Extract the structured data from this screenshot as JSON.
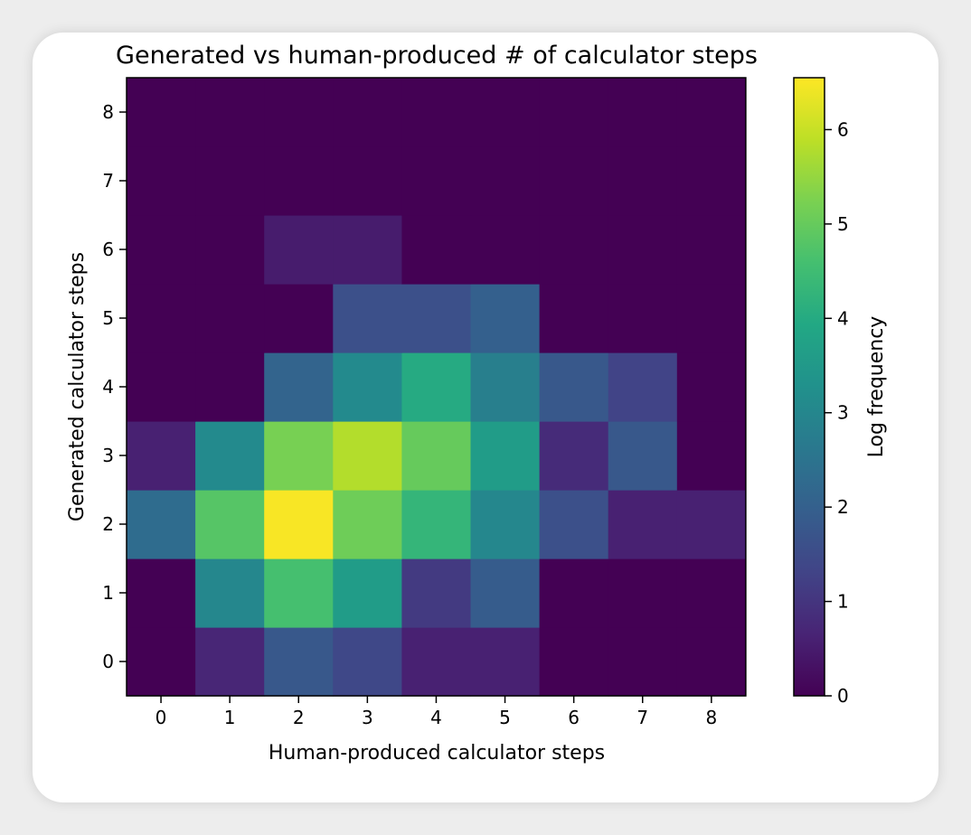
{
  "chart_data": {
    "type": "heatmap",
    "title": "Generated vs human-produced # of calculator steps",
    "xlabel": "Human-produced calculator steps",
    "ylabel": "Generated calculator steps",
    "x_categories": [
      "0",
      "1",
      "2",
      "3",
      "4",
      "5",
      "6",
      "7",
      "8"
    ],
    "y_categories": [
      "0",
      "1",
      "2",
      "3",
      "4",
      "5",
      "6",
      "7",
      "8"
    ],
    "x_tick_labels": [
      "0",
      "1",
      "2",
      "3",
      "4",
      "5",
      "6",
      "7",
      "8"
    ],
    "y_tick_labels": [
      "0",
      "1",
      "2",
      "3",
      "4",
      "5",
      "6",
      "7",
      "8"
    ],
    "values_note_order": "rows indexed by generated steps 0..8, columns by human-produced steps 0..8",
    "values": [
      [
        0.0,
        0.7,
        1.8,
        1.4,
        0.6,
        0.6,
        0.0,
        0.0,
        0.0
      ],
      [
        0.0,
        3.0,
        4.6,
        3.6,
        1.1,
        1.9,
        0.0,
        0.0,
        0.0
      ],
      [
        2.3,
        4.8,
        6.5,
        5.1,
        4.3,
        3.0,
        1.6,
        0.6,
        0.6
      ],
      [
        0.6,
        3.1,
        5.2,
        5.8,
        5.0,
        3.6,
        0.8,
        1.8,
        0.0
      ],
      [
        0.0,
        0.0,
        2.1,
        3.1,
        4.0,
        2.8,
        1.8,
        1.3,
        0.0
      ],
      [
        0.0,
        0.0,
        0.0,
        1.6,
        1.6,
        2.0,
        0.0,
        0.0,
        0.0
      ],
      [
        0.0,
        0.0,
        0.5,
        0.5,
        0.0,
        0.0,
        0.0,
        0.0,
        0.0
      ],
      [
        0.0,
        0.0,
        0.0,
        0.0,
        0.0,
        0.0,
        0.0,
        0.0,
        0.0
      ],
      [
        0.0,
        0.0,
        0.0,
        0.0,
        0.0,
        0.0,
        0.0,
        0.0,
        0.0
      ]
    ],
    "colormap": "viridis",
    "colorbar": {
      "label": "Log frequency",
      "range": [
        0,
        6.55
      ],
      "ticks": [
        0,
        1,
        2,
        3,
        4,
        5,
        6
      ],
      "tick_labels": [
        "0",
        "1",
        "2",
        "3",
        "4",
        "5",
        "6"
      ]
    },
    "grid": false
  }
}
